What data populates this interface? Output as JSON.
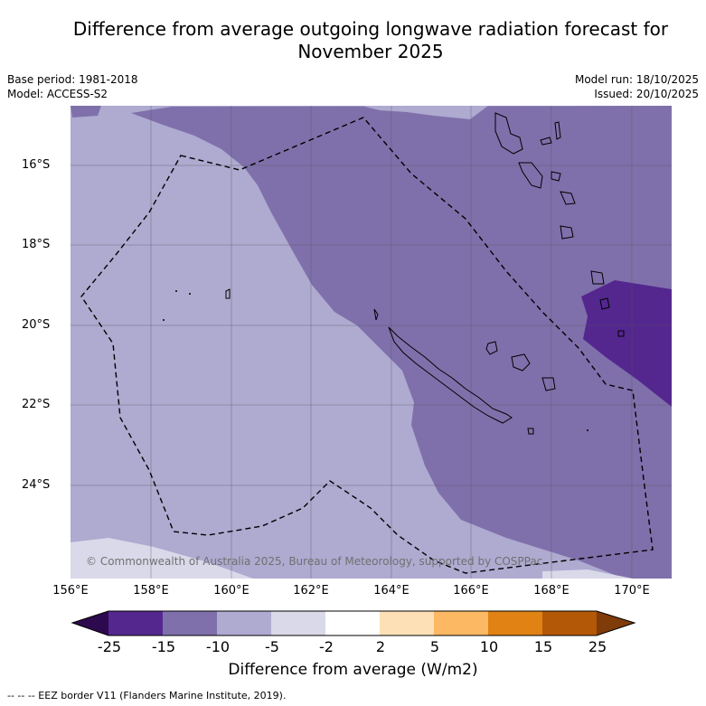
{
  "title_line1": "Difference from average outgoing longwave radiation forecast for",
  "title_line2": "November 2025",
  "base_period": "Base period: 1981-2018",
  "model": "Model: ACCESS-S2",
  "model_run": "Model run: 18/10/2025",
  "issued": "Issued: 20/10/2025",
  "copyright": "© Commonwealth of Australia 2025, Bureau of Meteorology, supported by COSPPac",
  "lat_labels": [
    "16°S",
    "18°S",
    "20°S",
    "22°S",
    "24°S"
  ],
  "lon_labels": [
    "156°E",
    "158°E",
    "160°E",
    "162°E",
    "164°E",
    "166°E",
    "168°E",
    "170°E"
  ],
  "colorbar": {
    "ticks": [
      "-25",
      "-15",
      "-10",
      "-5",
      "-2",
      "2",
      "5",
      "10",
      "15",
      "25"
    ],
    "colors": [
      "#2d0a4e",
      "#54278f",
      "#7f70ab",
      "#aeaad0",
      "#d9d9ea",
      "#ffffff",
      "#fee0b6",
      "#fdb863",
      "#e08214",
      "#b35806",
      "#7f3b08"
    ],
    "title": "Difference from average (W/m2)"
  },
  "footer": "--  --  -- EEZ border V11 (Flanders Marine Institute, 2019)."
}
